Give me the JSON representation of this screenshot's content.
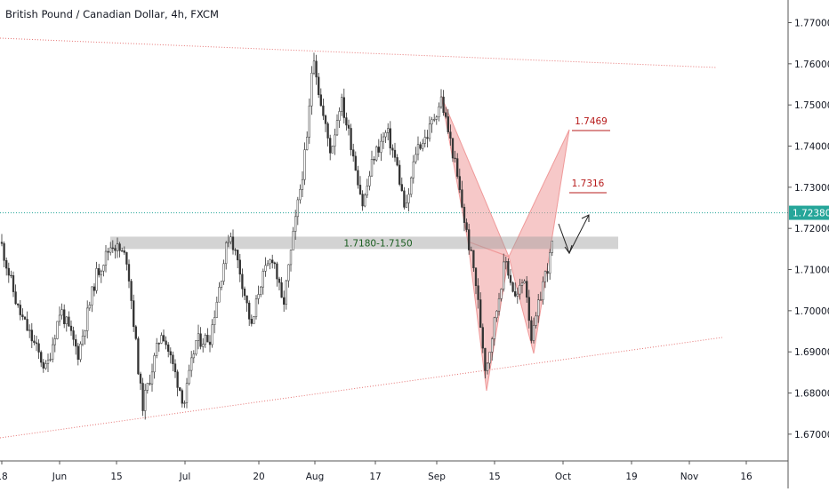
{
  "chart_data": {
    "type": "candlestick",
    "title": "British Pound / Canadian Dollar, 4h, FXCM",
    "y_ticks": [
      "1.77000",
      "1.76000",
      "1.75000",
      "1.74000",
      "1.73000",
      "1.72000",
      "1.71000",
      "1.70000",
      "1.69000",
      "1.68000",
      "1.67000"
    ],
    "y_tick_values": [
      1.77,
      1.76,
      1.75,
      1.74,
      1.73,
      1.72,
      1.71,
      1.7,
      1.69,
      1.68,
      1.67
    ],
    "ylim": [
      1.6635,
      1.7755
    ],
    "x_ticks": [
      "18",
      "Jun",
      "15",
      "Jul",
      "20",
      "Aug",
      "17",
      "Sep",
      "15",
      "Oct",
      "19",
      "Nov",
      "16"
    ],
    "current_price": {
      "label": "1.72380",
      "value": 1.7238
    },
    "zone": {
      "label": "1.7180-1.7150",
      "high": 1.718,
      "low": 1.715
    },
    "targets": [
      {
        "label": "1.7469",
        "value": 1.7469
      },
      {
        "label": "1.7316",
        "value": 1.7316
      }
    ],
    "price_path_knots": [
      [
        0,
        1.7175
      ],
      [
        20,
        1.7005
      ],
      [
        52,
        1.6855
      ],
      [
        68,
        1.7005
      ],
      [
        88,
        1.6895
      ],
      [
        108,
        1.7085
      ],
      [
        126,
        1.7165
      ],
      [
        143,
        1.7125
      ],
      [
        160,
        1.6765
      ],
      [
        182,
        1.6955
      ],
      [
        207,
        1.6775
      ],
      [
        220,
        1.6925
      ],
      [
        236,
        1.6935
      ],
      [
        258,
        1.7195
      ],
      [
        270,
        1.7095
      ],
      [
        283,
        1.6955
      ],
      [
        292,
        1.7065
      ],
      [
        307,
        1.7135
      ],
      [
        318,
        1.7005
      ],
      [
        328,
        1.7155
      ],
      [
        338,
        1.7305
      ],
      [
        346,
        1.7425
      ],
      [
        352,
        1.764
      ],
      [
        360,
        1.7505
      ],
      [
        372,
        1.7385
      ],
      [
        383,
        1.7515
      ],
      [
        396,
        1.7395
      ],
      [
        408,
        1.7255
      ],
      [
        420,
        1.7375
      ],
      [
        435,
        1.7435
      ],
      [
        446,
        1.7355
      ],
      [
        456,
        1.7235
      ],
      [
        468,
        1.7395
      ],
      [
        480,
        1.7425
      ],
      [
        496,
        1.7515
      ],
      [
        510,
        1.7375
      ],
      [
        524,
        1.7195
      ],
      [
        534,
        1.7085
      ],
      [
        546,
        1.6855
      ],
      [
        556,
        1.6975
      ],
      [
        568,
        1.7125
      ],
      [
        580,
        1.7025
      ],
      [
        590,
        1.7085
      ],
      [
        598,
        1.6925
      ],
      [
        610,
        1.7065
      ],
      [
        618,
        1.7125
      ],
      [
        624,
        1.7205
      ]
    ],
    "grid": false,
    "legend": "none"
  }
}
